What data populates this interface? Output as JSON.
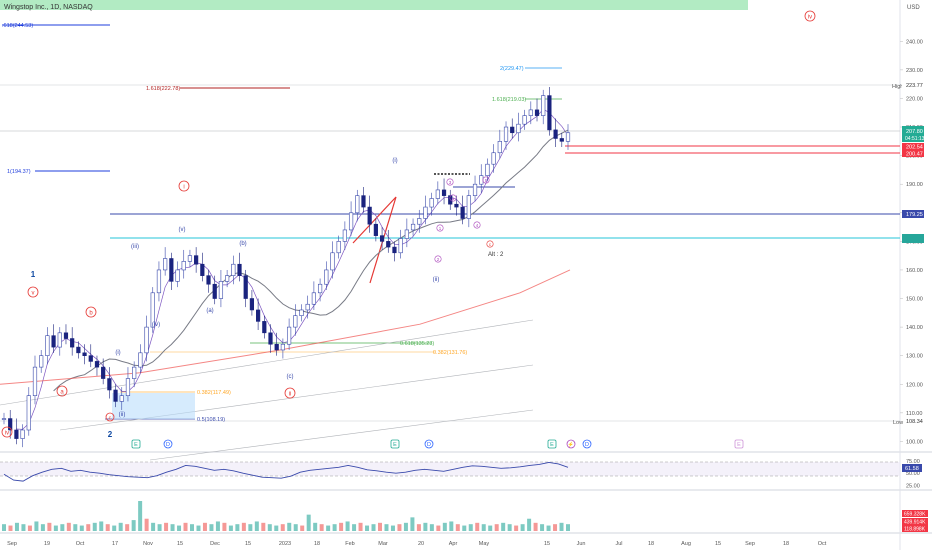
{
  "header": {
    "title": "Wingstop Inc., 1D, NASDAQ"
  },
  "chart_data": [
    {
      "type": "line",
      "name": "price",
      "title": "Wingstop Inc., 1D, NASDAQ",
      "currency": "USD",
      "ylim": [
        97,
        252
      ],
      "y_ticks": [
        100,
        110,
        120,
        130,
        140,
        150,
        160,
        170,
        180,
        190,
        200,
        210,
        220,
        230,
        240
      ],
      "x_ticks": [
        "Sep",
        "19",
        "Oct",
        "17",
        "Nov",
        "15",
        "Dec",
        "15",
        "2023",
        "18",
        "Feb",
        "Mar",
        "20",
        "Apr",
        "May",
        "15",
        "Jun",
        "Jul",
        "18",
        "Aug",
        "15",
        "Sep",
        "18",
        "Oct"
      ],
      "close_series_approx": [
        108,
        104,
        101,
        104,
        116,
        126,
        130,
        137,
        133,
        138,
        136,
        133,
        131,
        130,
        128,
        126,
        122,
        118,
        114,
        116,
        122,
        126,
        131,
        140,
        152,
        160,
        164,
        156,
        160,
        163,
        165,
        162,
        158,
        155,
        150,
        156,
        158,
        162,
        158,
        150,
        146,
        142,
        138,
        134,
        132,
        134,
        140,
        144,
        146,
        148,
        152,
        155,
        160,
        166,
        170,
        174,
        180,
        186,
        182,
        176,
        172,
        170,
        168,
        166,
        171,
        174,
        176,
        178,
        182,
        185,
        188,
        186,
        183,
        182,
        178,
        186,
        190,
        193,
        197,
        201,
        205,
        210,
        208,
        211,
        214,
        216,
        214,
        221,
        209,
        206,
        205,
        208
      ],
      "price_labels": {
        "last": "207.80",
        "countdown": "04:51:13",
        "level_a": "202.54",
        "level_b": "200.47",
        "level_c": "179.25",
        "high_value": "223.77",
        "low_value": "108.34",
        "high_tag": "High",
        "low_tag": "Low"
      },
      "fib_labels": {
        "f1": ".618(244.53)",
        "f2": "1.618(222.78)",
        "f3": "1(194.37)",
        "f4": "2(229.47)",
        "f5": "1.618(219.03)",
        "f6": "0.618(135.23)",
        "f7": "0.382(131.76)",
        "f8": "0.382(117.49)",
        "f9": "0.5(108.19)"
      },
      "wave_labels": {
        "w_iv_top": "iv",
        "w_i_red": "i",
        "w_1": "1",
        "w_v": "v",
        "w_b_red": "b",
        "w_a_red": "a",
        "w_c_red": "c",
        "w_2": "2",
        "w_iv_low": "iv",
        "w_iii_paren": "(iii)",
        "w_v_paren": "(v)",
        "w_iv_paren": "(iv)",
        "w_i_paren_low": "(i)",
        "w_ii_paren_low": "(ii)",
        "w_b_paren": "(b)",
        "w_a_paren": "(a)",
        "w_c_paren": "(c)",
        "w_ii_red": "ii",
        "w_i_paren_feb": "(i)",
        "w_ii_paren_mar": "(ii)",
        "alt": "Alt : 2",
        "s1": "3",
        "s2": "5",
        "s3": "4",
        "s4": "1",
        "s5": "2",
        "s6": "c",
        "s7": "a"
      },
      "events": [
        "E",
        "D",
        "E",
        "D",
        "E",
        "D",
        "E"
      ]
    },
    {
      "type": "line",
      "name": "RSI",
      "ylim": [
        20,
        85
      ],
      "y_ticks": [
        75,
        50,
        25
      ],
      "last_value": "61.58",
      "values_approx": [
        48,
        36,
        34,
        45,
        52,
        58,
        60,
        54,
        56,
        52,
        50,
        47,
        45,
        43,
        42,
        41,
        45,
        52,
        58,
        66,
        64,
        60,
        56,
        58,
        55,
        50,
        46,
        42,
        41,
        40,
        44,
        52,
        56,
        58,
        60,
        62,
        66,
        62,
        57,
        55,
        52,
        50,
        52,
        56,
        58,
        56,
        54,
        58,
        62,
        65,
        64,
        62,
        60,
        61,
        63,
        66,
        68,
        72,
        69,
        62
      ]
    },
    {
      "type": "bar",
      "name": "Volume",
      "labels": [
        "659.328K",
        "439.914K",
        "118.898K"
      ],
      "values_approx": [
        5,
        4,
        6,
        5,
        4,
        7,
        5,
        6,
        4,
        5,
        6,
        5,
        4,
        5,
        6,
        7,
        5,
        4,
        6,
        5,
        8,
        22,
        9,
        6,
        5,
        6,
        5,
        4,
        6,
        5,
        4,
        6,
        5,
        7,
        6,
        4,
        5,
        6,
        5,
        7,
        6,
        5,
        4,
        5,
        6,
        5,
        4,
        12,
        6,
        5,
        4,
        5,
        6,
        7,
        5,
        6,
        4,
        5,
        6,
        5,
        4,
        5,
        6,
        10,
        5,
        6,
        5,
        4,
        6,
        7,
        5,
        4,
        5,
        6,
        5,
        4,
        5,
        6,
        5,
        4,
        5,
        9,
        6,
        5,
        4,
        5,
        6,
        5
      ]
    }
  ]
}
